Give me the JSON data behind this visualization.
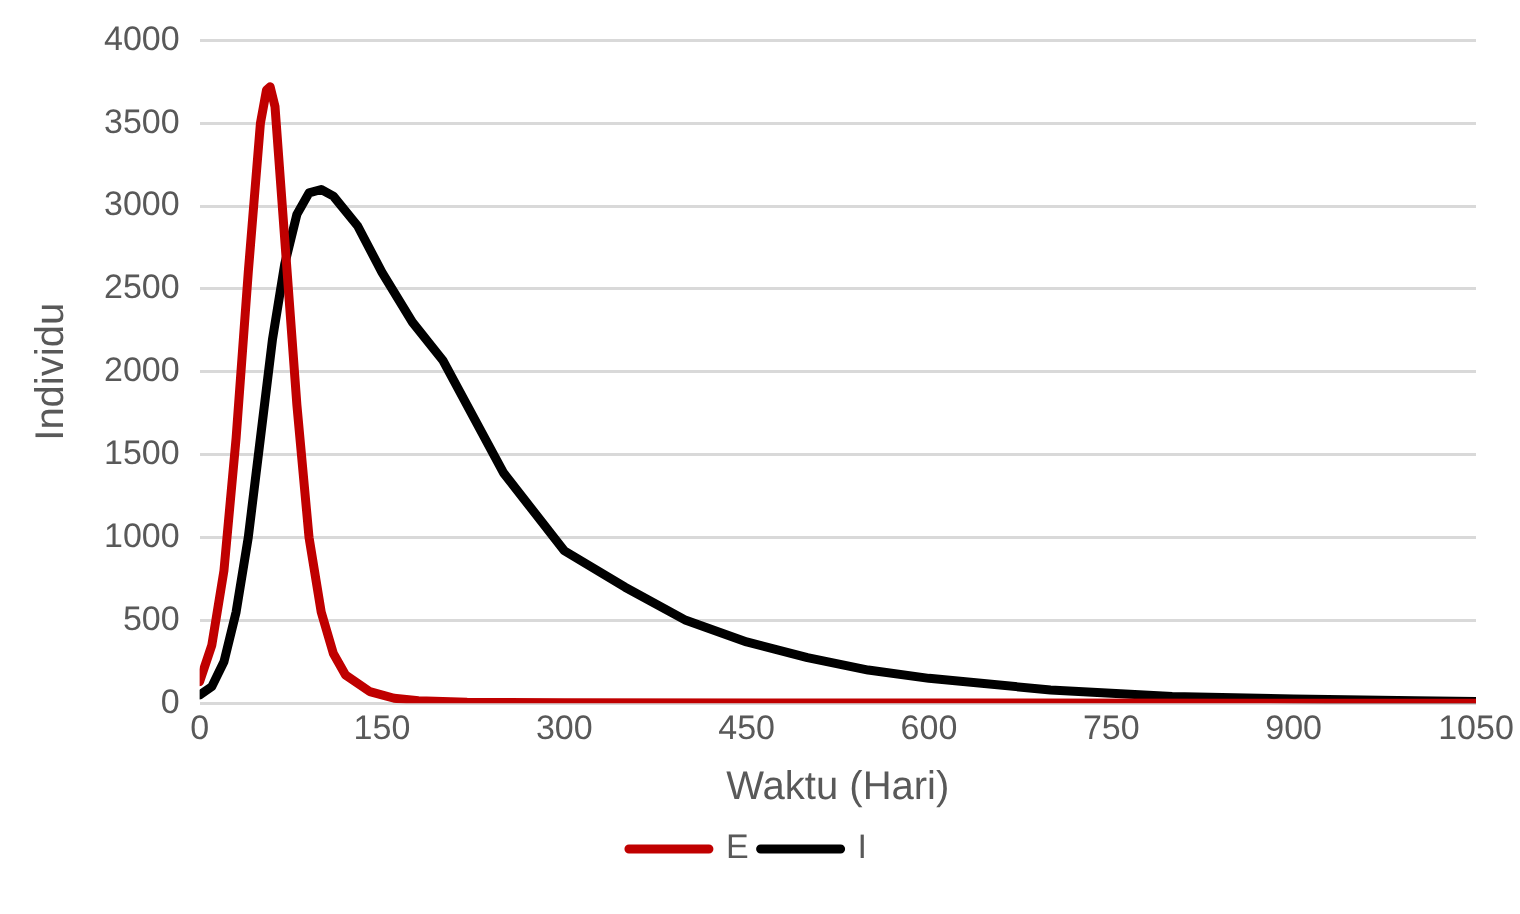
{
  "chart_data": {
    "type": "line",
    "xlabel": "Waktu (Hari)",
    "ylabel": "Individu",
    "xlim": [
      0,
      1050
    ],
    "xticks": [
      0,
      150,
      300,
      450,
      600,
      750,
      900,
      1050
    ],
    "ylim": [
      0,
      4000
    ],
    "yticks": [
      0,
      500,
      1000,
      1500,
      2000,
      2500,
      3000,
      3500,
      4000
    ],
    "grid": "y",
    "legend": "bottom",
    "marker": "none",
    "line_style": "solid",
    "series": [
      {
        "name": "E",
        "color": "#c00000",
        "x": [
          0,
          10,
          20,
          30,
          40,
          50,
          55,
          58,
          62,
          70,
          80,
          90,
          100,
          110,
          120,
          140,
          160,
          180,
          220,
          300,
          600,
          1050
        ],
        "values": [
          130,
          350,
          800,
          1600,
          2600,
          3500,
          3700,
          3720,
          3600,
          2800,
          1800,
          1000,
          550,
          300,
          170,
          70,
          30,
          15,
          5,
          2,
          1,
          0
        ]
      },
      {
        "name": "I",
        "color": "#000000",
        "x": [
          0,
          10,
          20,
          30,
          40,
          50,
          60,
          70,
          80,
          90,
          100,
          110,
          130,
          150,
          175,
          200,
          250,
          300,
          350,
          400,
          450,
          500,
          550,
          600,
          700,
          800,
          900,
          1000,
          1050
        ],
        "values": [
          50,
          100,
          250,
          550,
          1000,
          1600,
          2200,
          2650,
          2950,
          3080,
          3100,
          3060,
          2880,
          2600,
          2300,
          2070,
          1390,
          920,
          700,
          500,
          370,
          275,
          200,
          150,
          80,
          40,
          25,
          15,
          10
        ]
      }
    ]
  }
}
